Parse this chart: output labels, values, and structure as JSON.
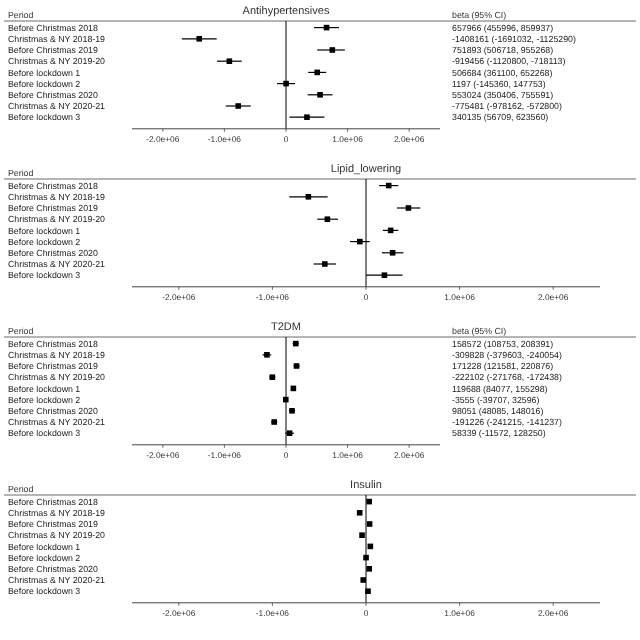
{
  "chart_data": [
    {
      "type": "scatter",
      "title": "Antihypertensives",
      "ylabel": "Period",
      "annotations": [
        "beta (95% CI)",
        "657966 (455996, 859937)",
        "-1408161 (-1691032, -1125290)",
        "751893 (506718, 955268)",
        "-919456 (-1120800, -718113)",
        "506684 (361100, 652268)",
        "1197 (-145360, 147753)",
        "553024 (350406, 755591)",
        "-775481 (-978162, -572800)",
        "340135 (56709, 623560)"
      ],
      "orientation": "horizontal",
      "marker": "square",
      "categories": [
        "Before Christmas 2018",
        "Christmas & NY 2018-19",
        "Before Christmas 2019",
        "Christmas & NY 2019-20",
        "Before lockdown 1",
        "Before lockdown 2",
        "Before Christmas 2020",
        "Christmas & NY 2020-21",
        "Before lockdown 3"
      ],
      "values": [
        657966,
        -1408161,
        751893,
        -919456,
        506684,
        1197,
        553024,
        -775481,
        340135
      ],
      "errors": [
        [
          455996,
          859937
        ],
        [
          -1691032,
          -1125290
        ],
        [
          506718,
          955268
        ],
        [
          -1120800,
          -718113
        ],
        [
          361100,
          652268
        ],
        [
          -145360,
          147753
        ],
        [
          350406,
          755591
        ],
        [
          -978162,
          -572800
        ],
        [
          56709,
          623560
        ]
      ],
      "xlim": [
        -2500000,
        2500000
      ],
      "xticks": [
        {
          "value": -2000000,
          "label": "-2.0e+06"
        },
        {
          "value": -1000000,
          "label": "-1.0e+06"
        },
        {
          "value": 0,
          "label": "0"
        },
        {
          "value": 1000000,
          "label": "1.0e+06"
        },
        {
          "value": 2000000,
          "label": "2.0e+06"
        }
      ],
      "ref_lines": [
        {
          "axis": "x",
          "value": 0
        }
      ],
      "color": "#000000"
    },
    {
      "type": "scatter",
      "title": "Lipid_lowering",
      "ylabel": "Period",
      "orientation": "horizontal",
      "marker": "square",
      "categories": [
        "Before Christmas 2018",
        "Christmas & NY 2018-19",
        "Before Christmas 2019",
        "Christmas & NY 2019-20",
        "Before lockdown 1",
        "Before lockdown 2",
        "Before Christmas 2020",
        "Christmas & NY 2020-21",
        "Before lockdown 3"
      ],
      "values": [
        242920,
        -615900,
        453500,
        -412600,
        263020,
        -65990,
        284350,
        -440400,
        196910
      ],
      "errors": [
        [
          140000,
          345000
        ],
        [
          -820000,
          -410000
        ],
        [
          330000,
          580000
        ],
        [
          -520000,
          -300000
        ],
        [
          180000,
          345000
        ],
        [
          -170000,
          40000
        ],
        [
          170000,
          400000
        ],
        [
          -560000,
          -320000
        ],
        [
          0,
          390000
        ]
      ],
      "xlim": [
        -2500000,
        2500000
      ],
      "xticks": [
        {
          "value": -2000000,
          "label": "-2.0e+06"
        },
        {
          "value": -1000000,
          "label": "-1.0e+06"
        },
        {
          "value": 0,
          "label": "0"
        },
        {
          "value": 1000000,
          "label": "1.0e+06"
        },
        {
          "value": 2000000,
          "label": "2.0e+06"
        }
      ],
      "ref_lines": [
        {
          "axis": "x",
          "value": 0
        }
      ],
      "color": "#000000"
    },
    {
      "type": "scatter",
      "title": "T2DM",
      "ylabel": "Period",
      "annotations": [
        "beta (95% CI)",
        "158572 (108753, 208391)",
        "-309828 (-379603, -240054)",
        "171228 (121581, 220876)",
        "-222102 (-271768, -172438)",
        "119688 (84077, 155298)",
        "-3555 (-39707, 32596)",
        "98051 (48085, 148016)",
        "-191226 (-241215, -141237)",
        "58339 (-11572, 128250)"
      ],
      "orientation": "horizontal",
      "marker": "square",
      "categories": [
        "Before Christmas 2018",
        "Christmas & NY 2018-19",
        "Before Christmas 2019",
        "Christmas & NY 2019-20",
        "Before lockdown 1",
        "Before lockdown 2",
        "Before Christmas 2020",
        "Christmas & NY 2020-21",
        "Before lockdown 3"
      ],
      "values": [
        158572,
        -309828,
        171228,
        -222102,
        119688,
        -3555,
        98051,
        -191226,
        58339
      ],
      "errors": [
        [
          108753,
          208391
        ],
        [
          -379603,
          -240054
        ],
        [
          121581,
          220876
        ],
        [
          -271768,
          -172438
        ],
        [
          84077,
          155298
        ],
        [
          -39707,
          32596
        ],
        [
          48085,
          148016
        ],
        [
          -241215,
          -141237
        ],
        [
          -11572,
          128250
        ]
      ],
      "xlim": [
        -2500000,
        2500000
      ],
      "xticks": [
        {
          "value": -2000000,
          "label": "-2.0e+06"
        },
        {
          "value": -1000000,
          "label": "-1.0e+06"
        },
        {
          "value": 0,
          "label": "0"
        },
        {
          "value": 1000000,
          "label": "1.0e+06"
        },
        {
          "value": 2000000,
          "label": "2.0e+06"
        }
      ],
      "ref_lines": [
        {
          "axis": "x",
          "value": 0
        }
      ],
      "color": "#000000"
    },
    {
      "type": "scatter",
      "title": "Insulin",
      "ylabel": "Period",
      "orientation": "horizontal",
      "marker": "square",
      "categories": [
        "Before Christmas 2018",
        "Christmas & NY 2018-19",
        "Before Christmas 2019",
        "Christmas & NY 2019-20",
        "Before lockdown 1",
        "Before lockdown 2",
        "Before Christmas 2020",
        "Christmas & NY 2020-21",
        "Before lockdown 3"
      ],
      "values": [
        33750,
        -67800,
        38380,
        -42200,
        46450,
        431,
        34300,
        -29600,
        21300
      ],
      "xlim": [
        -2500000,
        2500000
      ],
      "xticks": [
        {
          "value": -2000000,
          "label": "-2.0e+06"
        },
        {
          "value": -1000000,
          "label": "-1.0e+06"
        },
        {
          "value": 0,
          "label": "0"
        },
        {
          "value": 1000000,
          "label": "1.0e+06"
        },
        {
          "value": 2000000,
          "label": "2.0e+06"
        }
      ],
      "ref_lines": [
        {
          "axis": "x",
          "value": 0
        }
      ],
      "color": "#000000"
    }
  ]
}
